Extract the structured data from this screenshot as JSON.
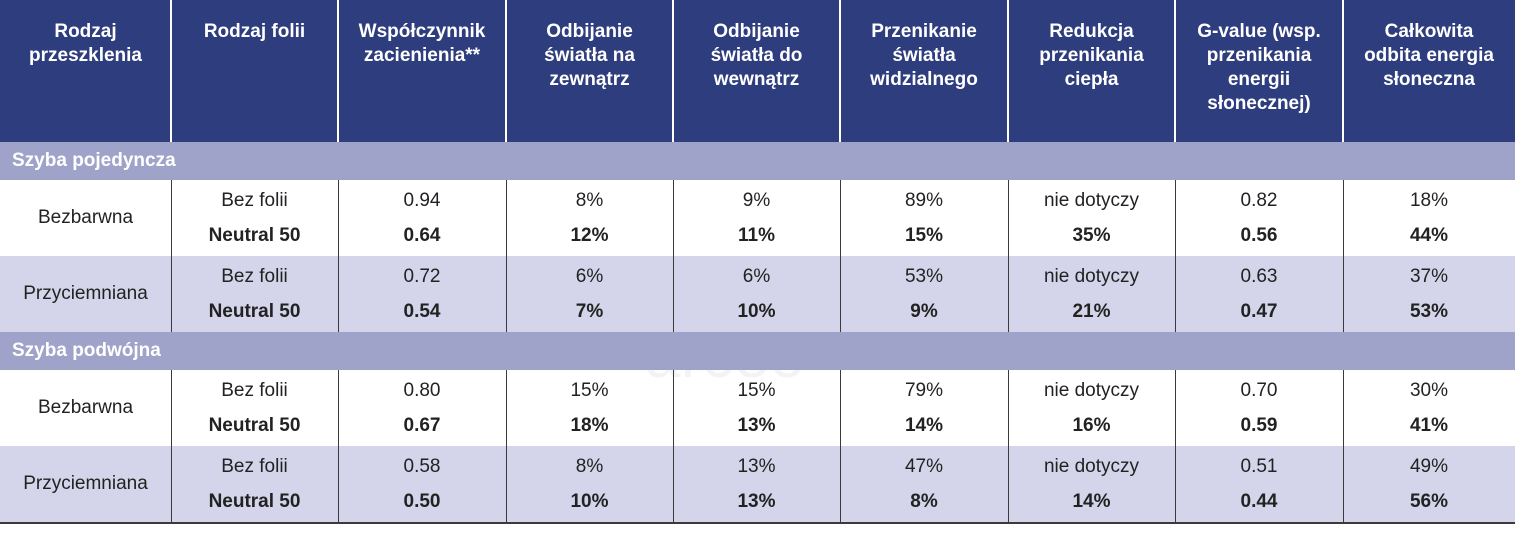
{
  "header": {
    "columns": [
      [
        "Rodzaj",
        "przeszklenia"
      ],
      [
        "Rodzaj folii"
      ],
      [
        "Współczynnik",
        "zacienienia**"
      ],
      [
        "Odbijanie",
        "światła na",
        "zewnątrz"
      ],
      [
        "Odbijanie",
        "światła do",
        "wewnątrz"
      ],
      [
        "Przenikanie",
        "światła",
        "widzialnego"
      ],
      [
        "Redukcja",
        "przenikania",
        "ciepła"
      ],
      [
        "G-value (wsp.",
        "przenikania",
        "energii",
        "słonecznej)"
      ],
      [
        "Całkowita",
        "odbita energia",
        "słoneczna"
      ]
    ]
  },
  "watermark": "arceo",
  "sections": [
    {
      "title": "Szyba pojedyncza",
      "groups": [
        {
          "glazing": "Bezbarwna",
          "rows": [
            [
              "Bez folii",
              "0.94",
              "8%",
              "9%",
              "89%",
              "nie dotyczy",
              "0.82",
              "18%"
            ],
            [
              "Neutral 50",
              "0.64",
              "12%",
              "11%",
              "15%",
              "35%",
              "0.56",
              "44%"
            ]
          ]
        },
        {
          "glazing": "Przyciemniana",
          "rows": [
            [
              "Bez folii",
              "0.72",
              "6%",
              "6%",
              "53%",
              "nie dotyczy",
              "0.63",
              "37%"
            ],
            [
              "Neutral 50",
              "0.54",
              "7%",
              "10%",
              "9%",
              "21%",
              "0.47",
              "53%"
            ]
          ]
        }
      ]
    },
    {
      "title": "Szyba podwójna",
      "groups": [
        {
          "glazing": "Bezbarwna",
          "rows": [
            [
              "Bez folii",
              "0.80",
              "15%",
              "15%",
              "79%",
              "nie dotyczy",
              "0.70",
              "30%"
            ],
            [
              "Neutral 50",
              "0.67",
              "18%",
              "13%",
              "14%",
              "16%",
              "0.59",
              "41%"
            ]
          ]
        },
        {
          "glazing": "Przyciemniana",
          "rows": [
            [
              "Bez folii",
              "0.58",
              "8%",
              "13%",
              "47%",
              "nie dotyczy",
              "0.51",
              "49%"
            ],
            [
              "Neutral 50",
              "0.50",
              "10%",
              "13%",
              "8%",
              "14%",
              "0.44",
              "56%"
            ]
          ]
        }
      ]
    }
  ]
}
